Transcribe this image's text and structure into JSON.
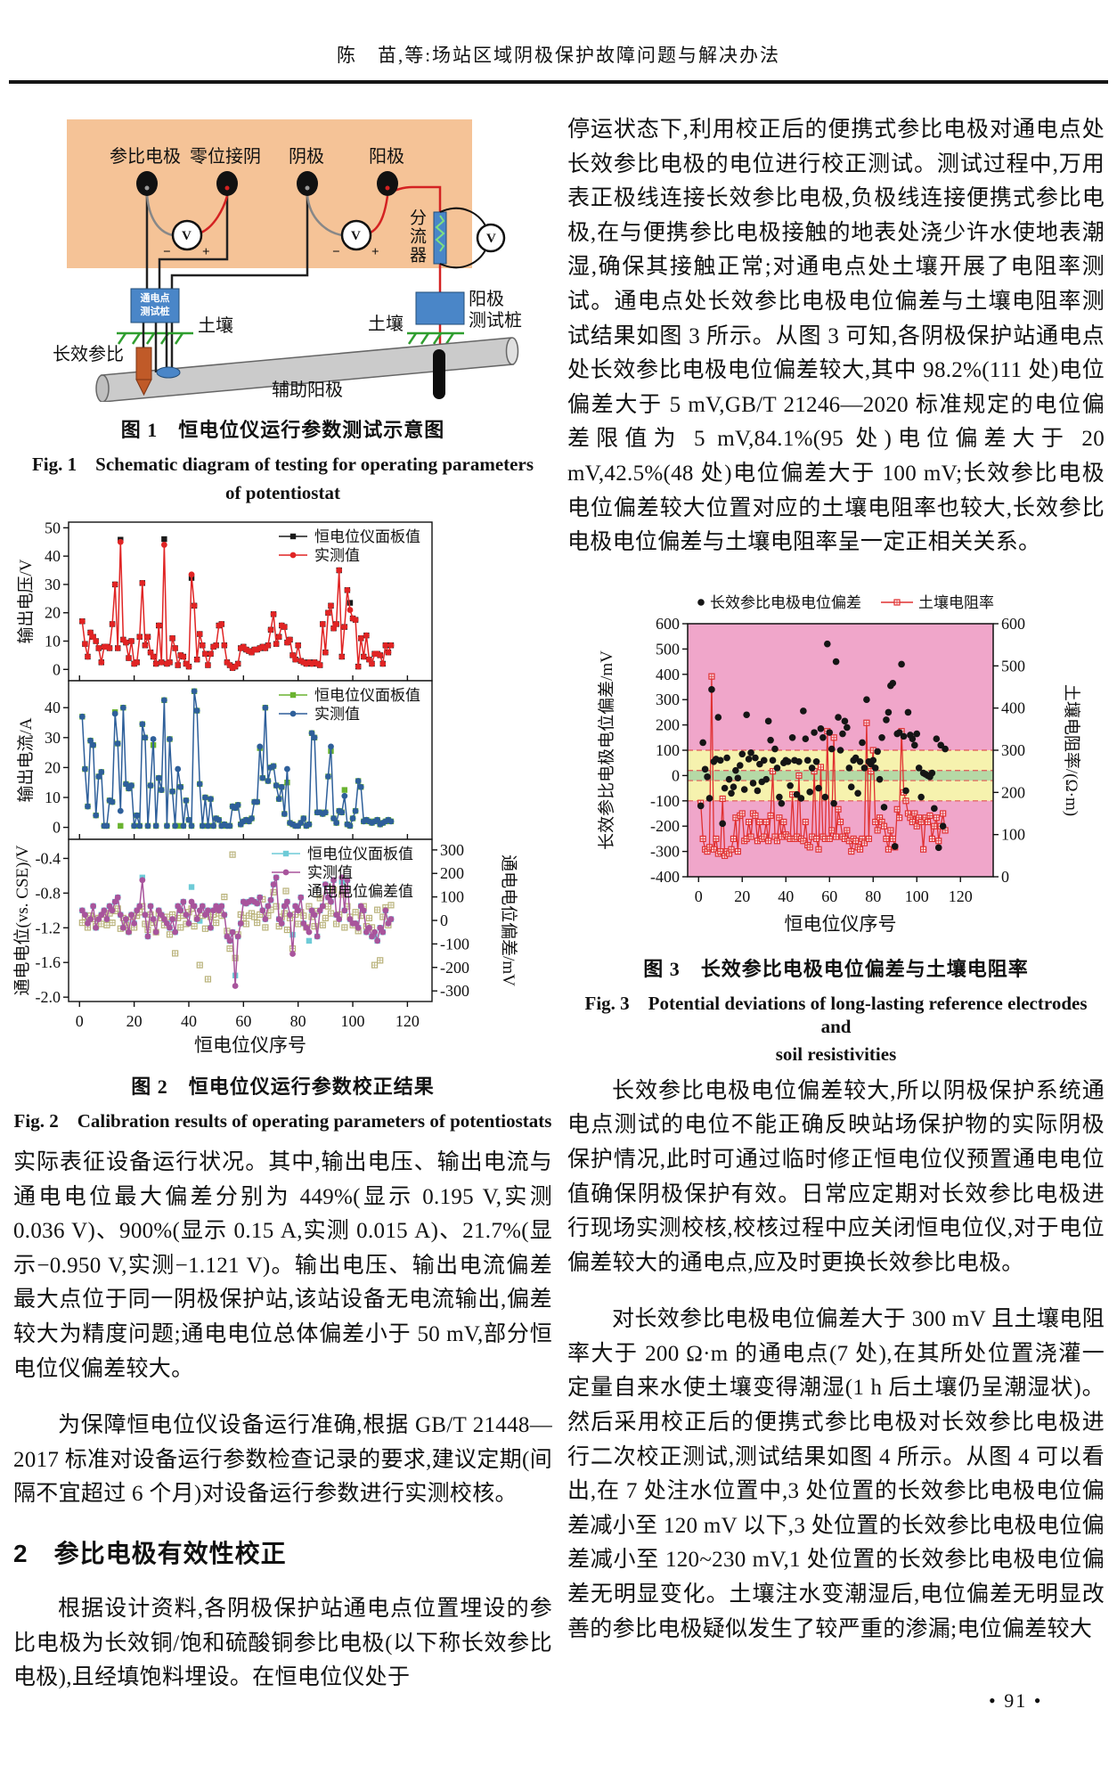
{
  "header": {
    "title": "陈　苗,等:场站区域阴极保护故障问题与解决办法"
  },
  "page_number": "• 91 •",
  "figure1": {
    "caption_zh": "图 1　恒电位仪运行参数测试示意图",
    "caption_en_line1": "Fig. 1　Schematic diagram of testing for operating parameters",
    "caption_en_line2": "of potentiostat",
    "labels": {
      "ref_electrode": "参比电极",
      "zero_cathode": "零位接阴",
      "cathode": "阴极",
      "anode": "阳极",
      "shunt": "分流器",
      "voltmeter1": "V",
      "voltmeter2": "V",
      "voltmeter3": "V",
      "minus1": "−",
      "plus1": "+",
      "minus2": "−",
      "plus2": "+",
      "powered_point_post": "通电点\n测试桩",
      "anode_post": "阳极\n测试桩",
      "soil_left": "土壤",
      "soil_right": "土壤",
      "long_ref": "长效参比",
      "aux_anode": "辅助阳极"
    }
  },
  "figure2": {
    "caption_zh": "图 2　恒电位仪运行参数校正结果",
    "caption_en": "Fig. 2　Calibration results of operating parameters of potentiostats"
  },
  "figure3": {
    "caption_zh": "图 3　长效参比电极电位偏差与土壤电阻率",
    "caption_en_line1": "Fig. 3　Potential deviations of long-lasting reference electrodes and",
    "caption_en_line2": "soil resistivities"
  },
  "left_column": {
    "para1": "实际表征设备运行状况。其中,输出电压、输出电流与通电电位最大偏差分别为 449%(显示 0.195 V,实测 0.036 V)、900%(显示 0.15 A,实测 0.015 A)、21.7%(显示−0.950 V,实测−1.121 V)。输出电压、输出电流偏差最大点位于同一阴极保护站,该站设备无电流输出,偏差较大为精度问题;通电电位总体偏差小于 50 mV,部分恒电位仪偏差较大。",
    "para2": "为保障恒电位仪设备运行准确,根据 GB/T 21448—2017 标准对设备运行参数检查记录的要求,建议定期(间隔不宜超过 6 个月)对设备运行参数进行实测校核。",
    "section_heading": "2　参比电极有效性校正",
    "para3": "根据设计资料,各阴极保护站通电点位置埋设的参比电极为长效铜/饱和硫酸铜参比电极(以下称长效参比电极),且经填饱料埋设。在恒电位仪处于"
  },
  "right_column": {
    "para1": "停运状态下,利用校正后的便携式参比电极对通电点处长效参比电极的电位进行校正测试。测试过程中,万用表正极线连接长效参比电极,负极线连接便携式参比电极,在与便携参比电极接触的地表处浇少许水使地表潮湿,确保其接触正常;对通电点处土壤开展了电阻率测试。通电点处长效参比电极电位偏差与土壤电阻率测试结果如图 3 所示。从图 3 可知,各阴极保护站通电点处长效参比电极电位偏差较大,其中 98.2%(111 处)电位偏差大于 5 mV,GB/T 21246—2020 标准规定的电位偏差限值为 5 mV,84.1%(95 处)电位偏差大于 20 mV,42.5%(48 处)电位偏差大于 100 mV;长效参比电极电位偏差较大位置对应的土壤电阻率也较大,长效参比电极电位偏差与土壤电阻率呈一定正相关关系。",
    "para2": "长效参比电极电位偏差较大,所以阴极保护系统通电点测试的电位不能正确反映站场保护物的实际阴极保护情况,此时可通过临时修正恒电位仪预置通电电位值确保阴极保护有效。日常应定期对长效参比电极进行现场实测校核,校核过程中应关闭恒电位仪,对于电位偏差较大的通电点,应及时更换长效参比电极。",
    "para3": "对长效参比电极电位偏差大于 300 mV 且土壤电阻率大于 200 Ω·m 的通电点(7 处),在其所处位置浇灌一定量自来水使土壤变得潮湿(1 h 后土壤仍呈潮湿状)。然后采用校正后的便携式参比电极对长效参比电极进行二次校正测试,测试结果如图 4 所示。从图 4 可以看出,在 7 处注水位置中,3 处位置的长效参比电极电位偏差减小至 120 mV 以下,3 处位置的长效参比电极电位偏差减小至 120~230 mV,1 处位置的长效参比电极电位偏差无明显变化。土壤注水变潮湿后,电位偏差无明显改善的参比电极疑似发生了较严重的渗漏;电位偏差较大"
  },
  "chart_data": [
    {
      "id": "fig2_voltage",
      "type": "line",
      "ylabel": "输出电压/V",
      "yticks": [
        "0",
        "10",
        "20",
        "30",
        "40",
        "50"
      ],
      "ylim": [
        -4,
        52
      ],
      "series": [
        {
          "name": "恒电位仪面板值",
          "marker": "square",
          "color": "#1a1a1a",
          "legend_line": true,
          "offsets": {
            "15": 0.8,
            "31": 2,
            "41": -1.2,
            "99": 2.5
          }
        },
        {
          "name": "实测值",
          "marker": "circle",
          "color": "#e02424",
          "line": true,
          "legend_line": true,
          "values": [
            17,
            9,
            4.5,
            13,
            11.5,
            10,
            7.5,
            2.5,
            8,
            8,
            7.5,
            16,
            30,
            7.5,
            45,
            10.5,
            9.5,
            4,
            10,
            2,
            2.5,
            11.5,
            30.5,
            8.5,
            11.5,
            6,
            4.5,
            2,
            15.5,
            2.5,
            44,
            2,
            2.5,
            11,
            7.5,
            1.5,
            5,
            4.5,
            2,
            1,
            33.5,
            22.5,
            3.5,
            12.5,
            8.5,
            5.5,
            1.5,
            5.5,
            8,
            8.5,
            15.5,
            16,
            8.5,
            2.5,
            1.5,
            0.5,
            1,
            2,
            7.5,
            8,
            7,
            6.5,
            6,
            7,
            7,
            7.5,
            8,
            7.5,
            8.5,
            14,
            19.5,
            9,
            11.5,
            15.5,
            15,
            9.5,
            10.5,
            5,
            3.5,
            8.5,
            3,
            2.5,
            2,
            2.5,
            2,
            2.5,
            2,
            1.5,
            16,
            6,
            20,
            22.5,
            14.5,
            16,
            35,
            4.5,
            15,
            28,
            21,
            18,
            17.5,
            1,
            11,
            4.5,
            12,
            3.5,
            2,
            5.5,
            5.5,
            5,
            2,
            8.5,
            6,
            8.5
          ]
        }
      ]
    },
    {
      "id": "fig2_current",
      "type": "line",
      "ylabel": "输出电流/A",
      "yticks": [
        "0",
        "10",
        "20",
        "30",
        "40"
      ],
      "ylim": [
        -4,
        49
      ],
      "series": [
        {
          "name": "恒电位仪面板值",
          "marker": "square",
          "color": "#6ab330",
          "legend_line": true,
          "offsets": {
            "13": 0.5,
            "15": -5,
            "27": -2,
            "36": -19,
            "66": -0.5,
            "76": -4.5,
            "92": -1.5,
            "97": 2
          }
        },
        {
          "name": "实测值",
          "marker": "circle",
          "color": "#2e5f9a",
          "line": true,
          "legend_line": true,
          "values": [
            37,
            19.5,
            7,
            29,
            27.5,
            4,
            17,
            18.5,
            0.5,
            0.5,
            9,
            8.5,
            38,
            28,
            5.5,
            40,
            14.5,
            13,
            14,
            0.5,
            4,
            0.5,
            34.5,
            30,
            0.5,
            14,
            29.5,
            0.5,
            16.5,
            12.5,
            42.5,
            0.5,
            29.5,
            12,
            0.5,
            19.5,
            13.5,
            0.5,
            9,
            2.5,
            0.5,
            45.5,
            39,
            14.5,
            0.5,
            10,
            0.5,
            9.5,
            0.5,
            3,
            2.5,
            0.5,
            1,
            0.5,
            0.5,
            7,
            6.5,
            7.5,
            1,
            2,
            2.5,
            2,
            3,
            8.5,
            8.5,
            27,
            16.5,
            40,
            15.5,
            20,
            20.5,
            14,
            9.5,
            13.5,
            4.5,
            19.5,
            1.5,
            1,
            0.5,
            0.5,
            1.5,
            3,
            0.5,
            1,
            31.5,
            30,
            5,
            5,
            4.5,
            5,
            17,
            27,
            3,
            1.5,
            5.5,
            5,
            10.5,
            1,
            0.5,
            3,
            5.5,
            15.5,
            13.5,
            2,
            2.5,
            2,
            1.5,
            2,
            2.5,
            1,
            1.5,
            2,
            2.5,
            2
          ]
        }
      ]
    },
    {
      "id": "fig2_potential",
      "type": "line",
      "ylabel_left": "通电电位(vs. CSE)/V",
      "ylabel_right": "通电电位偏差/mV",
      "yticks_left": [
        "-2.0",
        "-1.6",
        "-1.2",
        "-0.8",
        "-0.4"
      ],
      "yticks_right": [
        "300",
        "200",
        "100",
        "0",
        "-100",
        "-200",
        "-300"
      ],
      "ylim_left": [
        -2.05,
        -0.18
      ],
      "ylim_right": [
        -345,
        345
      ],
      "xticks": [
        "0",
        "20",
        "40",
        "60",
        "80",
        "100",
        "120"
      ],
      "xlabel": "恒电位仪序号",
      "series": [
        {
          "name": "恒电位仪面板值",
          "marker": "square",
          "color": "#6ecbd7",
          "legend_line": true,
          "offsets": {
            "23": 0.03,
            "41": 0.17,
            "44": -0.12,
            "57": 0.12,
            "78": 0.22,
            "84": -0.1,
            "96": -0.05,
            "108": -0.05
          }
        },
        {
          "name": "实测值",
          "marker": "circle",
          "color": "#a8549c",
          "line": true,
          "legend_line": true,
          "values": [
            -1.0,
            -1.05,
            -1.15,
            -1.1,
            -0.95,
            -1.2,
            -1.1,
            -1.05,
            -1.0,
            -1.1,
            -0.95,
            -1.0,
            -0.9,
            -0.85,
            -1.05,
            -1.2,
            -1.1,
            -1.25,
            -1.05,
            -1.15,
            -1.0,
            -0.95,
            -0.65,
            -1.05,
            -1.3,
            -0.95,
            -1.1,
            -1.25,
            -1.0,
            -1.05,
            -1.1,
            -1.15,
            -1.2,
            -1.1,
            -1.25,
            -0.95,
            -1.0,
            -0.9,
            -1.05,
            -1.15,
            -0.9,
            -0.95,
            -1.1,
            -1.0,
            -0.95,
            -1.05,
            -1.0,
            -1.2,
            -1.0,
            -0.95,
            -1.0,
            -0.95,
            -1.05,
            -1.3,
            -1.35,
            -1.25,
            -1.87,
            -1.3,
            -1.15,
            -0.9,
            -0.92,
            -0.9,
            -0.88,
            -0.9,
            -0.92,
            -0.85,
            -1.0,
            -1.1,
            -0.95,
            -0.88,
            -0.7,
            -0.62,
            -1.1,
            -1.15,
            -0.95,
            -0.9,
            -1.05,
            -1.5,
            -0.95,
            -1.0,
            -0.85,
            -1.15,
            -1.2,
            -1.25,
            -1.0,
            -1.05,
            -1.3,
            -1.0,
            -0.95,
            -0.7,
            -0.85,
            -0.9,
            -0.65,
            -1.05,
            -1.1,
            -0.62,
            -1.0,
            -0.65,
            -1.1,
            -1.15,
            -1.15,
            -1.2,
            -0.95,
            -1.0,
            -1.25,
            -1.2,
            -1.3,
            -1.25,
            -1.35,
            -1.2,
            -1.25,
            -1.0,
            -1.15,
            -1.1
          ]
        },
        {
          "name": "通电电位偏差值",
          "marker": "open-square",
          "color": "#b9b27a",
          "axis": "right",
          "legend_line": false,
          "values": [
            -10,
            15,
            -30,
            20,
            5,
            -25,
            10,
            -15,
            25,
            -20,
            30,
            -10,
            40,
            50,
            -35,
            10,
            -20,
            -45,
            15,
            -30,
            20,
            35,
            60,
            -15,
            -40,
            25,
            -10,
            -50,
            30,
            10,
            -20,
            15,
            -60,
            25,
            -140,
            10,
            -30,
            20,
            -15,
            35,
            50,
            -25,
            10,
            -190,
            20,
            -35,
            -250,
            15,
            25,
            -10,
            30,
            20,
            100,
            -45,
            -120,
            280,
            -160,
            -60,
            25,
            10,
            -15,
            20,
            30,
            15,
            -10,
            25,
            90,
            -30,
            20,
            45,
            120,
            60,
            -25,
            15,
            30,
            -40,
            10,
            -120,
            25,
            -15,
            35,
            20,
            -30,
            60,
            15,
            -25,
            40,
            95,
            -20,
            10,
            60,
            30,
            130,
            -15,
            25,
            110,
            -30,
            60,
            15,
            -20,
            35,
            -45,
            20,
            60,
            -25,
            10,
            -30,
            -190,
            45,
            -170,
            15,
            55,
            -20,
            65
          ]
        }
      ]
    },
    {
      "id": "fig3",
      "type": "scatter",
      "ylabel_left": "长效参比电极电位偏差/mV",
      "ylabel_right": "土壤电阻率/(Ω·m)",
      "xlabel": "恒电位仪序号",
      "ylim_left": [
        -400,
        600
      ],
      "ylim_right": [
        0,
        600
      ],
      "yticks_left": [
        "600",
        "500",
        "400",
        "300",
        "200",
        "100",
        "0",
        "-100",
        "-200",
        "-300",
        "-400"
      ],
      "yticks_right": [
        "600",
        "500",
        "400",
        "300",
        "200",
        "100",
        "0"
      ],
      "xticks": [
        "0",
        "20",
        "40",
        "60",
        "80",
        "100",
        "120"
      ],
      "bands": {
        "outer_color": "#f0a6ca",
        "yellow_range": [
          -100,
          100
        ],
        "yellow_color": "#f6f2ae",
        "green_range": [
          -20,
          20
        ],
        "green_color": "#b5d9a6",
        "dash_color": "#e05555"
      },
      "series": [
        {
          "name": "长效参比电极电位偏差",
          "marker": "dot",
          "color": "#151515",
          "legend_line": false,
          "values": [
            -120,
            130,
            25,
            -5,
            -90,
            340,
            55,
            65,
            230,
            60,
            -190,
            -50,
            70,
            -15,
            -70,
            -45,
            20,
            -10,
            40,
            85,
            -55,
            240,
            65,
            90,
            -30,
            70,
            -60,
            45,
            -25,
            60,
            -15,
            215,
            140,
            60,
            105,
            30,
            -85,
            -110,
            50,
            60,
            55,
            -40,
            150,
            60,
            -75,
            55,
            -90,
            255,
            145,
            60,
            -65,
            30,
            170,
            55,
            -50,
            185,
            150,
            -85,
            520,
            170,
            105,
            -110,
            450,
            230,
            100,
            165,
            215,
            190,
            30,
            -45,
            60,
            70,
            -70,
            55,
            130,
            30,
            300,
            55,
            45,
            60,
            30,
            95,
            -15,
            150,
            -125,
            220,
            250,
            355,
            365,
            -280,
            165,
            170,
            440,
            155,
            -60,
            250,
            160,
            145,
            120,
            165,
            30,
            -85,
            10,
            5,
            0,
            -5,
            10,
            -130,
            145,
            -285,
            120,
            -200,
            105
          ]
        },
        {
          "name": "土壤电阻率",
          "marker": "open-square",
          "color": "#e03030",
          "line": true,
          "axis": "right",
          "legend_line": true,
          "values": [
            175,
            90,
            65,
            60,
            70,
            475,
            65,
            90,
            55,
            60,
            185,
            50,
            60,
            55,
            65,
            90,
            140,
            60,
            145,
            150,
            85,
            90,
            130,
            95,
            150,
            145,
            85,
            130,
            90,
            95,
            130,
            85,
            145,
            250,
            95,
            85,
            140,
            95,
            130,
            100,
            95,
            90,
            195,
            90,
            95,
            240,
            90,
            85,
            130,
            75,
            70,
            95,
            250,
            90,
            65,
            260,
            95,
            90,
            345,
            90,
            110,
            330,
            95,
            160,
            130,
            95,
            90,
            110,
            85,
            60,
            90,
            85,
            70,
            65,
            90,
            80,
            365,
            90,
            250,
            300,
            130,
            110,
            140,
            130,
            120,
            90,
            65,
            110,
            90,
            70,
            160,
            140,
            345,
            200,
            180,
            150,
            140,
            130,
            150,
            120,
            140,
            130,
            65,
            140,
            130,
            145,
            90,
            120,
            140,
            85,
            120,
            150,
            110
          ]
        }
      ]
    }
  ]
}
